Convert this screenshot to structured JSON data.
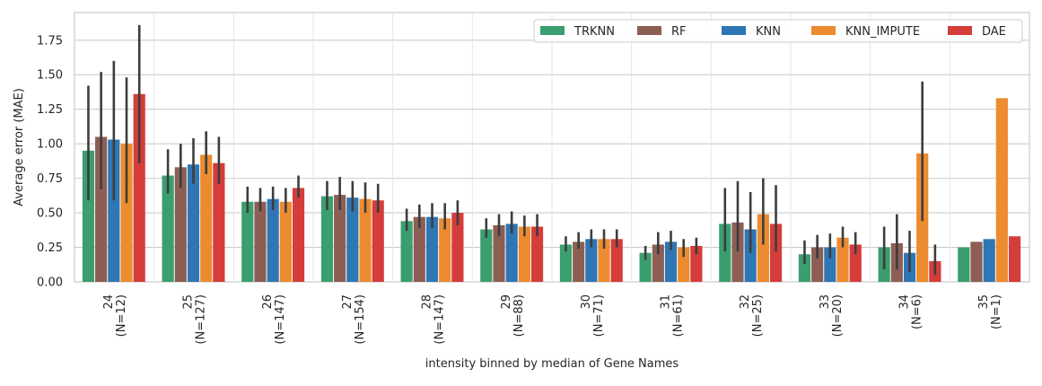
{
  "chart_data": {
    "type": "bar",
    "title": "",
    "xlabel": "intensity binned by median of Gene Names",
    "ylabel": "Average error (MAE)",
    "ylim": [
      0,
      1.95
    ],
    "yticks": [
      "0.00",
      "0.25",
      "0.50",
      "0.75",
      "1.00",
      "1.25",
      "1.50",
      "1.75"
    ],
    "ytick_values": [
      0,
      0.25,
      0.5,
      0.75,
      1.0,
      1.25,
      1.5,
      1.75
    ],
    "grid": true,
    "legend_position": "top-right",
    "categories": [
      [
        "24",
        "(N=12)"
      ],
      [
        "25",
        "(N=127)"
      ],
      [
        "26",
        "(N=147)"
      ],
      [
        "27",
        "(N=154)"
      ],
      [
        "28",
        "(N=147)"
      ],
      [
        "29",
        "(N=88)"
      ],
      [
        "30",
        "(N=71)"
      ],
      [
        "31",
        "(N=61)"
      ],
      [
        "32",
        "(N=25)"
      ],
      [
        "33",
        "(N=20)"
      ],
      [
        "34",
        "(N=6)"
      ],
      [
        "35",
        "(N=1)"
      ]
    ],
    "series": [
      {
        "name": "TRKNN",
        "color": "#3a9e6e",
        "values": [
          0.95,
          0.77,
          0.58,
          0.62,
          0.44,
          0.38,
          0.27,
          0.21,
          0.42,
          0.2,
          0.25,
          0.25
        ],
        "err_low": [
          0.59,
          0.64,
          0.5,
          0.52,
          0.37,
          0.32,
          0.22,
          0.16,
          0.22,
          0.13,
          0.09,
          null
        ],
        "err_high": [
          1.42,
          0.96,
          0.69,
          0.73,
          0.53,
          0.46,
          0.33,
          0.26,
          0.68,
          0.3,
          0.4,
          null
        ]
      },
      {
        "name": "RF",
        "color": "#8c5e54",
        "values": [
          1.05,
          0.83,
          0.58,
          0.63,
          0.47,
          0.41,
          0.29,
          0.27,
          0.43,
          0.25,
          0.28,
          0.29
        ],
        "err_low": [
          0.67,
          0.68,
          0.51,
          0.52,
          0.39,
          0.33,
          0.24,
          0.2,
          0.22,
          0.17,
          0.09,
          null
        ],
        "err_high": [
          1.52,
          1.0,
          0.68,
          0.76,
          0.56,
          0.49,
          0.36,
          0.36,
          0.73,
          0.34,
          0.49,
          null
        ]
      },
      {
        "name": "KNN",
        "color": "#2f76b4",
        "values": [
          1.03,
          0.85,
          0.6,
          0.61,
          0.47,
          0.42,
          0.31,
          0.29,
          0.38,
          0.25,
          0.21,
          0.31
        ],
        "err_low": [
          0.59,
          0.71,
          0.52,
          0.51,
          0.39,
          0.35,
          0.25,
          0.23,
          0.21,
          0.17,
          0.07,
          null
        ],
        "err_high": [
          1.6,
          1.04,
          0.69,
          0.73,
          0.57,
          0.51,
          0.38,
          0.37,
          0.65,
          0.35,
          0.37,
          null
        ]
      },
      {
        "name": "KNN_IMPUTE",
        "color": "#ec8b2f",
        "values": [
          1.0,
          0.92,
          0.58,
          0.6,
          0.46,
          0.4,
          0.31,
          0.25,
          0.49,
          0.32,
          0.93,
          1.33
        ],
        "err_low": [
          0.57,
          0.78,
          0.5,
          0.5,
          0.38,
          0.33,
          0.24,
          0.18,
          0.27,
          0.25,
          0.44,
          null
        ],
        "err_high": [
          1.48,
          1.09,
          0.68,
          0.72,
          0.57,
          0.48,
          0.38,
          0.31,
          0.75,
          0.4,
          1.45,
          null
        ]
      },
      {
        "name": "DAE",
        "color": "#d43d3a",
        "values": [
          1.36,
          0.86,
          0.68,
          0.59,
          0.5,
          0.4,
          0.31,
          0.26,
          0.42,
          0.27,
          0.15,
          0.33
        ],
        "err_low": [
          0.86,
          0.71,
          0.61,
          0.5,
          0.41,
          0.33,
          0.25,
          0.2,
          0.22,
          0.2,
          0.05,
          null
        ],
        "err_high": [
          1.86,
          1.05,
          0.77,
          0.71,
          0.59,
          0.49,
          0.38,
          0.32,
          0.7,
          0.36,
          0.27,
          null
        ]
      }
    ]
  }
}
